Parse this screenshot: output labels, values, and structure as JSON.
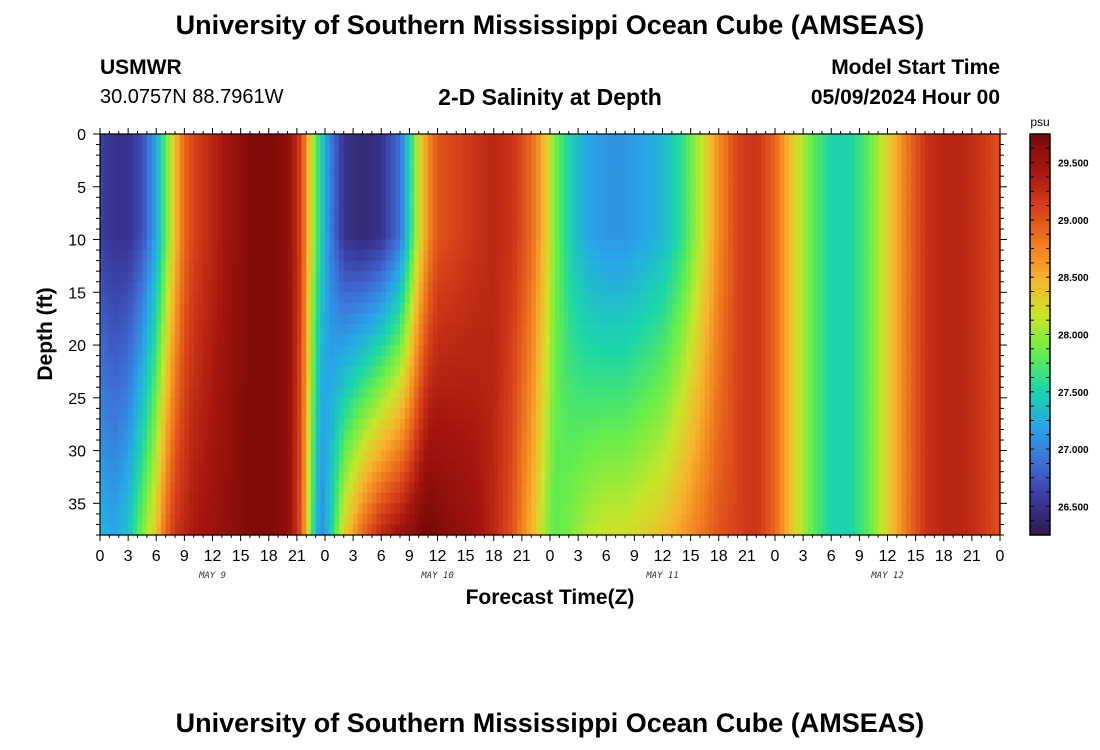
{
  "header": {
    "title": "University of Southern Mississippi Ocean Cube (AMSEAS)",
    "station": "USMWR",
    "coords": "30.0757N  88.7961W",
    "subtitle": "2-D Salinity at Depth",
    "model_start_label": "Model Start Time",
    "model_start_value": "05/09/2024 Hour 00"
  },
  "footer": {
    "title": "University of Southern Mississippi Ocean Cube (AMSEAS)"
  },
  "chart_data": {
    "type": "heatmap",
    "xlabel": "Forecast Time(Z)",
    "ylabel": "Depth (ft)",
    "xlim": [
      0,
      96
    ],
    "ylim": [
      38,
      0
    ],
    "x_ticks": [
      0,
      3,
      6,
      9,
      12,
      15,
      18,
      21,
      24,
      27,
      30,
      33,
      36,
      39,
      42,
      45,
      48,
      51,
      54,
      57,
      60,
      63,
      66,
      69,
      72,
      75,
      78,
      81,
      84,
      87,
      90,
      93,
      96
    ],
    "x_tick_labels": [
      "0",
      "3",
      "6",
      "9",
      "12",
      "15",
      "18",
      "21",
      "0",
      "3",
      "6",
      "9",
      "12",
      "15",
      "18",
      "21",
      "0",
      "3",
      "6",
      "9",
      "12",
      "15",
      "18",
      "21",
      "0",
      "3",
      "6",
      "9",
      "12",
      "15",
      "18",
      "21",
      "0"
    ],
    "y_ticks": [
      0,
      5,
      10,
      15,
      20,
      25,
      30,
      35
    ],
    "day_labels": [
      {
        "x": 12,
        "label": "MAY 9"
      },
      {
        "x": 36,
        "label": "MAY 10"
      },
      {
        "x": 60,
        "label": "MAY 11"
      },
      {
        "x": 84,
        "label": "MAY 12"
      }
    ],
    "colorbar": {
      "unit": "psu",
      "min": 26.25,
      "max": 29.75,
      "ticks": [
        26.5,
        27.0,
        27.5,
        28.0,
        28.5,
        29.0,
        29.5
      ],
      "tick_labels": [
        "26.500",
        "27.000",
        "27.500",
        "28.000",
        "28.500",
        "29.000",
        "29.500"
      ],
      "colormap": [
        "#2e1a4a",
        "#3a3a9e",
        "#3f6fd8",
        "#27a8e8",
        "#1bd6a8",
        "#66ee4a",
        "#c8e62a",
        "#f7b52c",
        "#f07a1e",
        "#d6401a",
        "#a5150e",
        "#7a0a06"
      ]
    },
    "time_knots": [
      0,
      1.5,
      3,
      4.5,
      6,
      7,
      8,
      9,
      10,
      12,
      14,
      16,
      18,
      20,
      21.5,
      22.5,
      23.5,
      24.5,
      26,
      28,
      30,
      32,
      33,
      34,
      35,
      36,
      38,
      40,
      42,
      44,
      46,
      47.5,
      48.5,
      50,
      52,
      54,
      56,
      58,
      60,
      62,
      64,
      66,
      68,
      70,
      72,
      74,
      76,
      78,
      80,
      82,
      84,
      86,
      88,
      90,
      92,
      94,
      96
    ],
    "surface_salinity": [
      26.6,
      26.5,
      26.5,
      26.7,
      27.2,
      27.8,
      28.4,
      28.9,
      29.1,
      29.3,
      29.5,
      29.7,
      29.7,
      29.6,
      29.1,
      28.2,
      27.5,
      27.0,
      26.5,
      26.4,
      26.5,
      26.9,
      27.5,
      28.2,
      28.7,
      29.0,
      29.1,
      29.2,
      29.3,
      29.2,
      28.9,
      28.4,
      27.9,
      27.5,
      27.2,
      27.1,
      27.1,
      27.2,
      27.3,
      27.6,
      28.1,
      28.7,
      29.1,
      29.2,
      28.9,
      28.3,
      27.8,
      27.5,
      27.5,
      27.8,
      28.3,
      28.8,
      29.2,
      29.3,
      29.3,
      29.2,
      29.0
    ],
    "bottom_salinity": [
      27.3,
      27.2,
      27.4,
      27.9,
      28.4,
      28.9,
      29.2,
      29.3,
      29.4,
      29.5,
      29.6,
      29.7,
      29.7,
      29.6,
      29.0,
      27.8,
      27.0,
      27.4,
      28.3,
      28.9,
      29.3,
      29.5,
      29.6,
      29.7,
      29.8,
      29.7,
      29.6,
      29.5,
      29.3,
      29.0,
      28.5,
      28.0,
      27.8,
      27.9,
      28.1,
      28.2,
      28.2,
      28.3,
      28.4,
      28.6,
      28.8,
      29.0,
      29.1,
      29.2,
      28.9,
      28.3,
      27.8,
      27.5,
      27.5,
      27.8,
      28.3,
      28.8,
      29.2,
      29.3,
      29.3,
      29.2,
      29.0
    ]
  }
}
